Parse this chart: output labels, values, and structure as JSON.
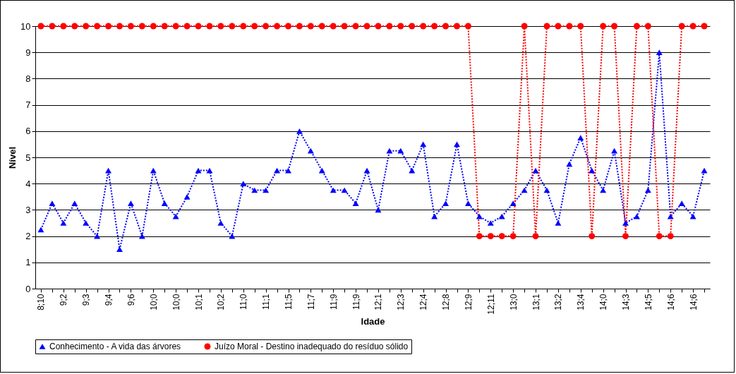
{
  "chart_data": {
    "type": "line",
    "xlabel": "Idade",
    "ylabel": "Nível",
    "categories": [
      "8;10",
      null,
      "9;2",
      null,
      "9;3",
      null,
      "9;4",
      null,
      "9;6",
      null,
      "10;0",
      null,
      "10;0",
      null,
      "10;1",
      null,
      "10;2",
      null,
      "11;0",
      null,
      "11;1",
      null,
      "11;5",
      null,
      "11;7",
      null,
      "11;9",
      null,
      "11;9",
      null,
      "12;1",
      null,
      "12;3",
      null,
      "12;4",
      null,
      "12;8",
      null,
      "12;9",
      null,
      "12;11",
      null,
      "13;0",
      null,
      "13;1",
      null,
      "13;2",
      null,
      "13;4",
      null,
      "14;0",
      null,
      "14;3",
      null,
      "14;5",
      null,
      "14;6",
      null,
      "14;6",
      null
    ],
    "series": [
      {
        "name": "Conhecimento - A vida das árvores",
        "color": "#0000ff",
        "marker": "triangle",
        "values": [
          2.25,
          3.25,
          2.5,
          3.25,
          2.5,
          2,
          4.5,
          1.5,
          3.25,
          2,
          4.5,
          3.25,
          2.75,
          3.5,
          4.5,
          4.5,
          2.5,
          2,
          4,
          3.75,
          3.75,
          4.5,
          4.5,
          6,
          5.25,
          4.5,
          3.75,
          3.75,
          3.25,
          4.5,
          3,
          5.25,
          5.25,
          4.5,
          5.5,
          2.75,
          3.25,
          5.5,
          3.25,
          2.75,
          2.5,
          2.75,
          3.25,
          3.75,
          4.5,
          3.75,
          2.5,
          4.75,
          5.75,
          4.5,
          3.75,
          5.25,
          2.5,
          2.75,
          3.75,
          9,
          2.75,
          3.25,
          2.75,
          4.5
        ]
      },
      {
        "name": "Juízo Moral - Destino inadequado do resíduo sólido",
        "color": "#ff0000",
        "marker": "circle",
        "values": [
          10,
          10,
          10,
          10,
          10,
          10,
          10,
          10,
          10,
          10,
          10,
          10,
          10,
          10,
          10,
          10,
          10,
          10,
          10,
          10,
          10,
          10,
          10,
          10,
          10,
          10,
          10,
          10,
          10,
          10,
          10,
          10,
          10,
          10,
          10,
          10,
          10,
          10,
          10,
          2,
          2,
          2,
          2,
          10,
          2,
          10,
          10,
          10,
          10,
          2,
          10,
          10,
          2,
          10,
          10,
          2,
          2,
          10,
          10,
          10
        ]
      }
    ],
    "ylim": [
      0,
      10
    ],
    "yticks": [
      0,
      1,
      2,
      3,
      4,
      5,
      6,
      7,
      8,
      9,
      10
    ],
    "grid": "y",
    "legend": "bottom",
    "line_style": "dotted"
  }
}
